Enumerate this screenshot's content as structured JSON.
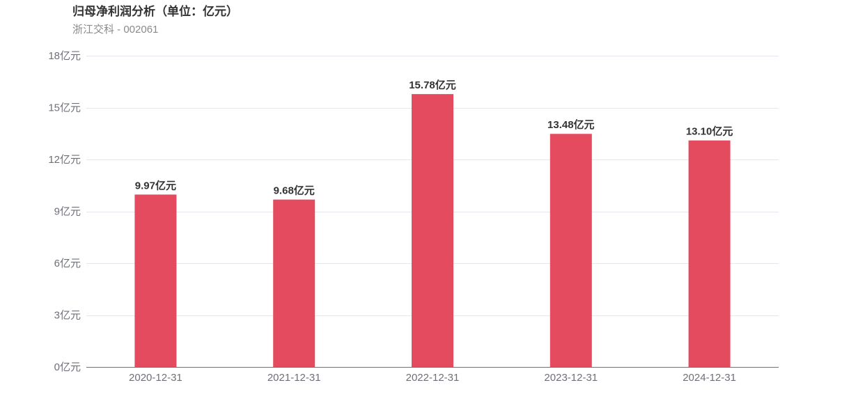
{
  "header": {
    "title": "归母净利润分析（单位：亿元）",
    "subtitle": "浙江交科 - 002061"
  },
  "colors": {
    "bar": "#e44b5e",
    "grid": "#e6e6ee",
    "axis": "#6e7079"
  },
  "chart_data": {
    "type": "bar",
    "categories": [
      "2020-12-31",
      "2021-12-31",
      "2022-12-31",
      "2023-12-31",
      "2024-12-31"
    ],
    "values": [
      9.97,
      9.68,
      15.78,
      13.48,
      13.1
    ],
    "value_labels": [
      "9.97亿元",
      "9.68亿元",
      "15.78亿元",
      "13.48亿元",
      "13.10亿元"
    ],
    "y_ticks": [
      0,
      3,
      6,
      9,
      12,
      15,
      18
    ],
    "y_tick_labels": [
      "0亿元",
      "3亿元",
      "6亿元",
      "9亿元",
      "12亿元",
      "15亿元",
      "18亿元"
    ],
    "ylim": [
      0,
      18
    ],
    "grid": true,
    "xlabel": "",
    "ylabel": ""
  }
}
